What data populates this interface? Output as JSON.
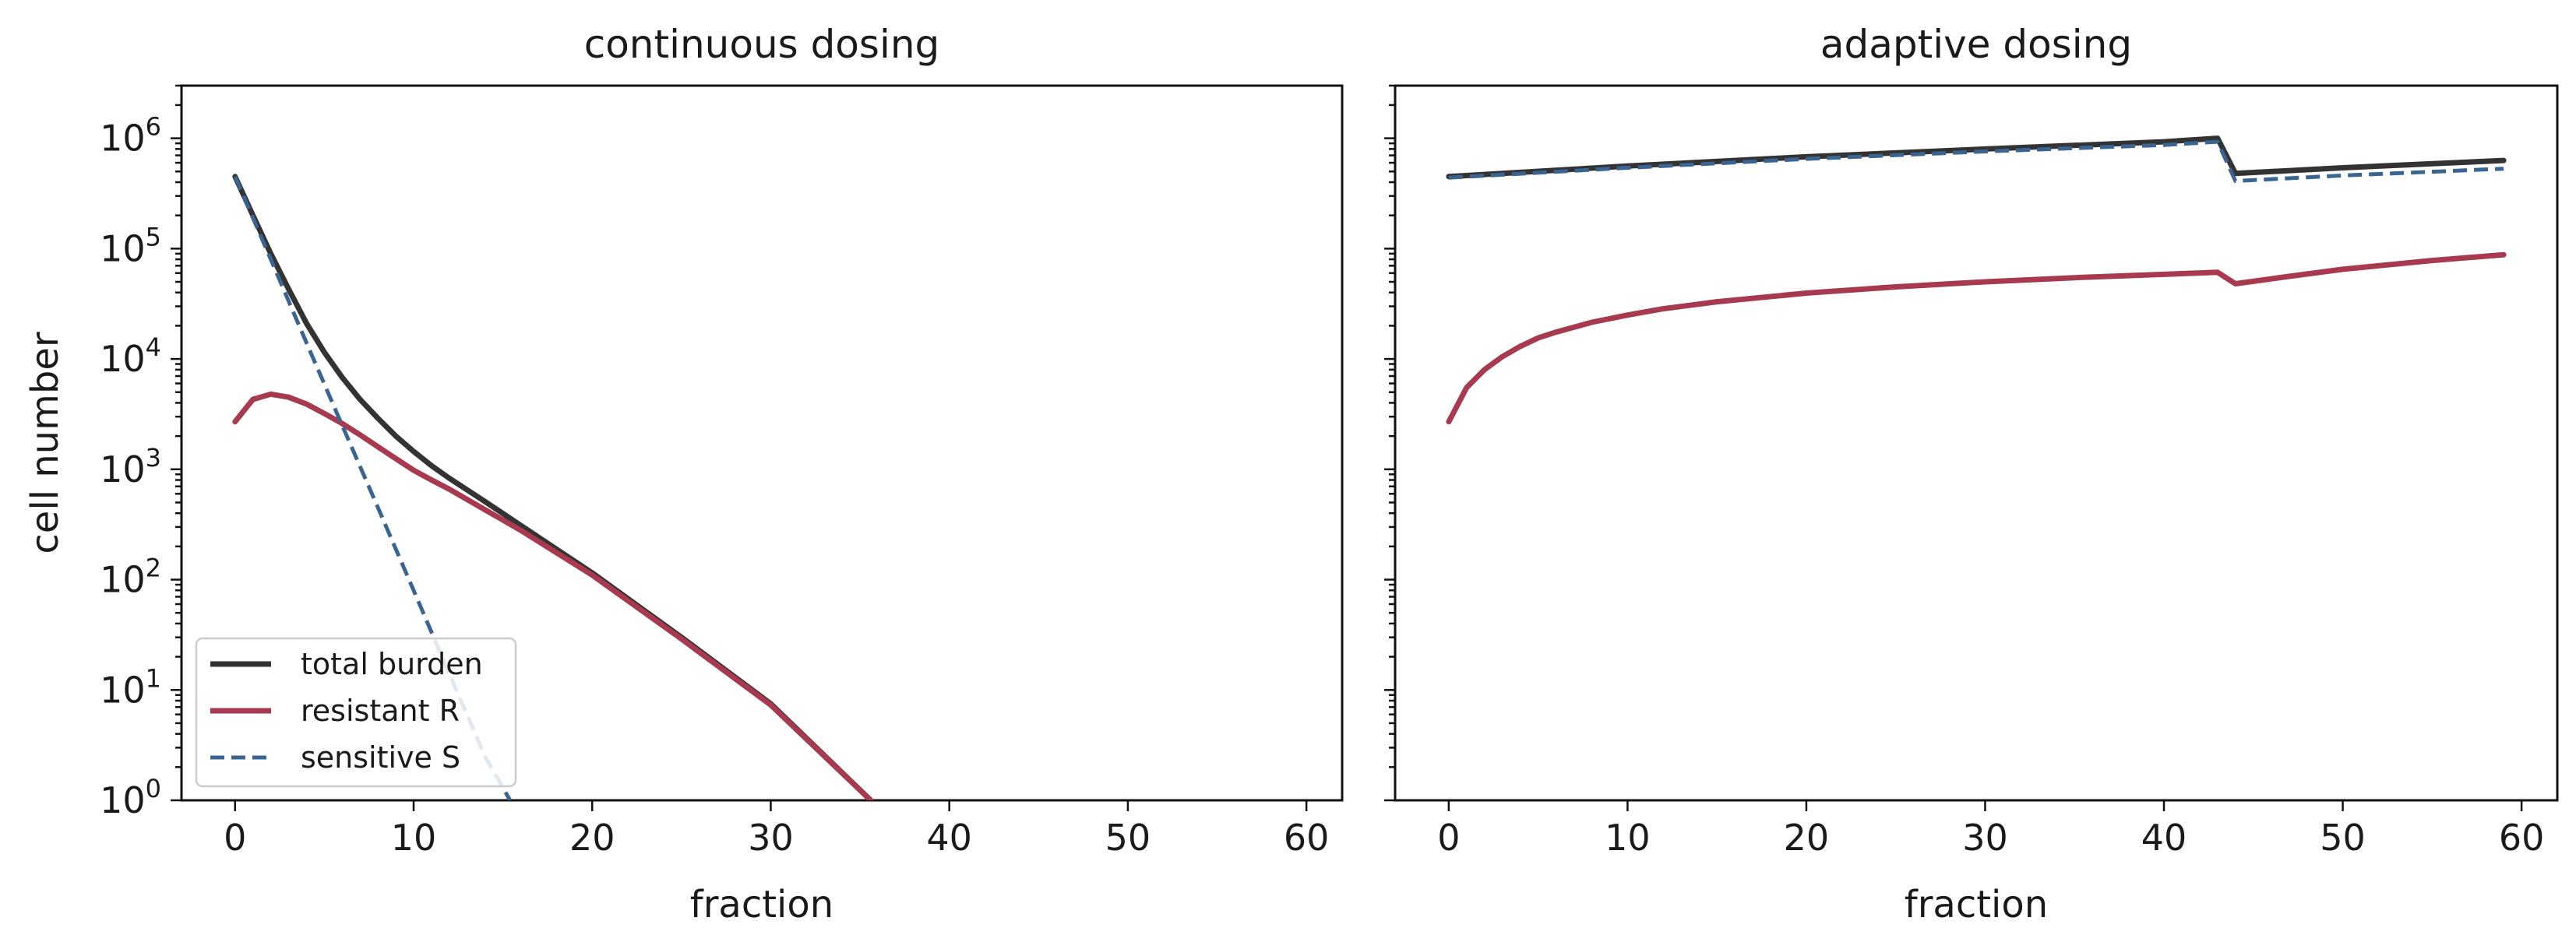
{
  "chart_data": [
    {
      "type": "line",
      "title": "continuous dosing",
      "xlabel": "fraction",
      "ylabel": "cell number",
      "yscale": "log",
      "xlim": [
        -3,
        62
      ],
      "ylim": [
        1,
        3000000
      ],
      "xticks": [
        0,
        10,
        20,
        30,
        40,
        50,
        60
      ],
      "yticks": [
        1,
        10,
        100,
        1000,
        10000,
        100000,
        1000000
      ],
      "yticklabels": [
        {
          "base": "10",
          "exp": "0"
        },
        {
          "base": "10",
          "exp": "1"
        },
        {
          "base": "10",
          "exp": "2"
        },
        {
          "base": "10",
          "exp": "3"
        },
        {
          "base": "10",
          "exp": "4"
        },
        {
          "base": "10",
          "exp": "5"
        },
        {
          "base": "10",
          "exp": "6"
        }
      ],
      "legend_position": "lower-left",
      "series": [
        {
          "name": "total burden",
          "color": "#333333",
          "dash": "solid",
          "x": [
            0,
            1,
            2,
            3,
            4,
            5,
            6,
            7,
            8,
            9,
            10,
            11,
            12,
            14,
            16,
            20,
            25,
            30,
            35.6
          ],
          "y": [
            450000,
            200000,
            90000,
            43000,
            21000,
            11500,
            6800,
            4300,
            2900,
            2000,
            1450,
            1080,
            830,
            510,
            310,
            115,
            30,
            7.5,
            1
          ]
        },
        {
          "name": "resistant R",
          "color": "#a83a50",
          "dash": "solid",
          "x": [
            0,
            1,
            2,
            3,
            4,
            5,
            6,
            7,
            8,
            9,
            10,
            11,
            12,
            14,
            16,
            20,
            25,
            30,
            35.6
          ],
          "y": [
            2700,
            4300,
            4800,
            4500,
            3900,
            3200,
            2600,
            2050,
            1600,
            1250,
            980,
            800,
            660,
            430,
            280,
            110,
            29,
            7.3,
            1
          ]
        },
        {
          "name": "sensitive S",
          "color": "#3a6592",
          "dash": "dashed",
          "x": [
            0,
            2,
            4,
            6,
            8,
            10,
            12,
            14,
            15.4
          ],
          "y": [
            450000,
            80000,
            14000,
            2500,
            450,
            80,
            14,
            2.5,
            1
          ]
        }
      ]
    },
    {
      "type": "line",
      "title": "adaptive dosing",
      "xlabel": "fraction",
      "ylabel": "",
      "yscale": "log",
      "xlim": [
        -3,
        62
      ],
      "ylim": [
        1,
        3000000
      ],
      "xticks": [
        0,
        10,
        20,
        30,
        40,
        50,
        60
      ],
      "yticks": [
        1,
        10,
        100,
        1000,
        10000,
        100000,
        1000000
      ],
      "series": [
        {
          "name": "total burden",
          "color": "#333333",
          "dash": "solid",
          "x": [
            0,
            10,
            20,
            30,
            40,
            43,
            44,
            50,
            59
          ],
          "y": [
            450000,
            560000,
            680000,
            800000,
            930000,
            1000000,
            480000,
            540000,
            630000
          ]
        },
        {
          "name": "resistant R",
          "color": "#a83a50",
          "dash": "solid",
          "x": [
            0,
            1,
            2,
            3,
            4,
            5,
            6,
            8,
            10,
            12,
            15,
            20,
            25,
            30,
            35,
            40,
            43,
            44,
            47,
            50,
            55,
            59
          ],
          "y": [
            2700,
            5500,
            8000,
            10500,
            13000,
            15500,
            17500,
            21500,
            25000,
            28500,
            33000,
            39500,
            45000,
            50000,
            54500,
            58500,
            61000,
            48000,
            56000,
            65000,
            78000,
            88000
          ]
        },
        {
          "name": "sensitive S",
          "color": "#3a6592",
          "dash": "dashed",
          "x": [
            0,
            10,
            20,
            30,
            40,
            43,
            44,
            50,
            59
          ],
          "y": [
            440000,
            540000,
            650000,
            760000,
            870000,
            930000,
            410000,
            460000,
            530000
          ]
        }
      ]
    }
  ]
}
